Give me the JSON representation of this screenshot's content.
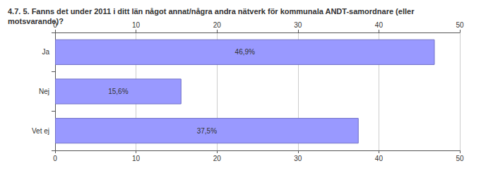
{
  "chart_data": {
    "type": "bar",
    "orientation": "horizontal",
    "title": "4.7. 5. Fanns det under 2011 i ditt län något annat/några andra nätverk för kommunala ANDT-samordnare (eller motsvarande)?",
    "categories": [
      "Ja",
      "Nej",
      "Vet ej"
    ],
    "values": [
      46.9,
      15.6,
      37.5
    ],
    "value_labels": [
      "46,9%",
      "15,6%",
      "37,5%"
    ],
    "color": "#9999ff",
    "xlim": [
      0,
      50
    ],
    "xticks": [
      0,
      10,
      20,
      30,
      40,
      50
    ],
    "grid": true,
    "data_labels": true
  }
}
